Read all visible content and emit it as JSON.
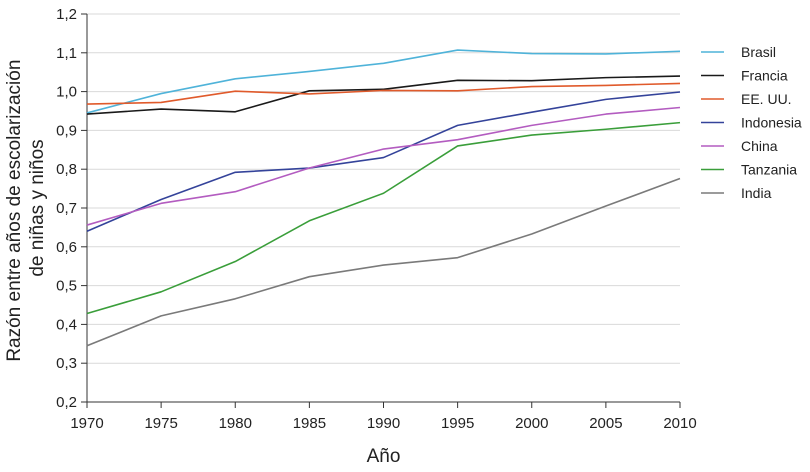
{
  "chart_data": {
    "type": "line",
    "xlabel": "Año",
    "ylabel_lines": [
      "Razón entre años de escolarización",
      "de niñas y niños"
    ],
    "x": [
      1970,
      1975,
      1980,
      1985,
      1990,
      1995,
      2000,
      2005,
      2010
    ],
    "x_ticks": [
      "1970",
      "1975",
      "1980",
      "1985",
      "1990",
      "1995",
      "2000",
      "2005",
      "2010"
    ],
    "y_ticks": [
      "0,2",
      "0,3",
      "0,4",
      "0,5",
      "0,6",
      "0,7",
      "0,8",
      "0,9",
      "1,0",
      "1,1",
      "1,2"
    ],
    "xlim": [
      1970,
      2010
    ],
    "ylim": [
      0.2,
      1.2
    ],
    "grid": "horizontal",
    "legend_position": "right",
    "series": [
      {
        "name": "Brasil",
        "color": "#4fb3d9",
        "values": [
          0.945,
          0.995,
          1.033,
          1.052,
          1.073,
          1.107,
          1.098,
          1.097,
          1.104
        ]
      },
      {
        "name": "Francia",
        "color": "#1a1a1a",
        "values": [
          0.942,
          0.955,
          0.948,
          1.002,
          1.006,
          1.029,
          1.028,
          1.036,
          1.04
        ]
      },
      {
        "name": "EE. UU.",
        "color": "#e05a2b",
        "values": [
          0.968,
          0.972,
          1.001,
          0.994,
          1.003,
          1.002,
          1.013,
          1.016,
          1.021
        ]
      },
      {
        "name": "Indonesia",
        "color": "#34439a",
        "values": [
          0.64,
          0.722,
          0.792,
          0.803,
          0.83,
          0.913,
          0.947,
          0.98,
          0.999
        ]
      },
      {
        "name": "China",
        "color": "#b35cc0",
        "values": [
          0.656,
          0.712,
          0.742,
          0.803,
          0.852,
          0.876,
          0.913,
          0.942,
          0.959
        ]
      },
      {
        "name": "Tanzania",
        "color": "#3a9e3a",
        "values": [
          0.428,
          0.484,
          0.562,
          0.667,
          0.738,
          0.86,
          0.888,
          0.903,
          0.92
        ]
      },
      {
        "name": "India",
        "color": "#7a7a7a",
        "values": [
          0.345,
          0.422,
          0.466,
          0.523,
          0.553,
          0.572,
          0.633,
          0.705,
          0.776
        ]
      }
    ]
  }
}
